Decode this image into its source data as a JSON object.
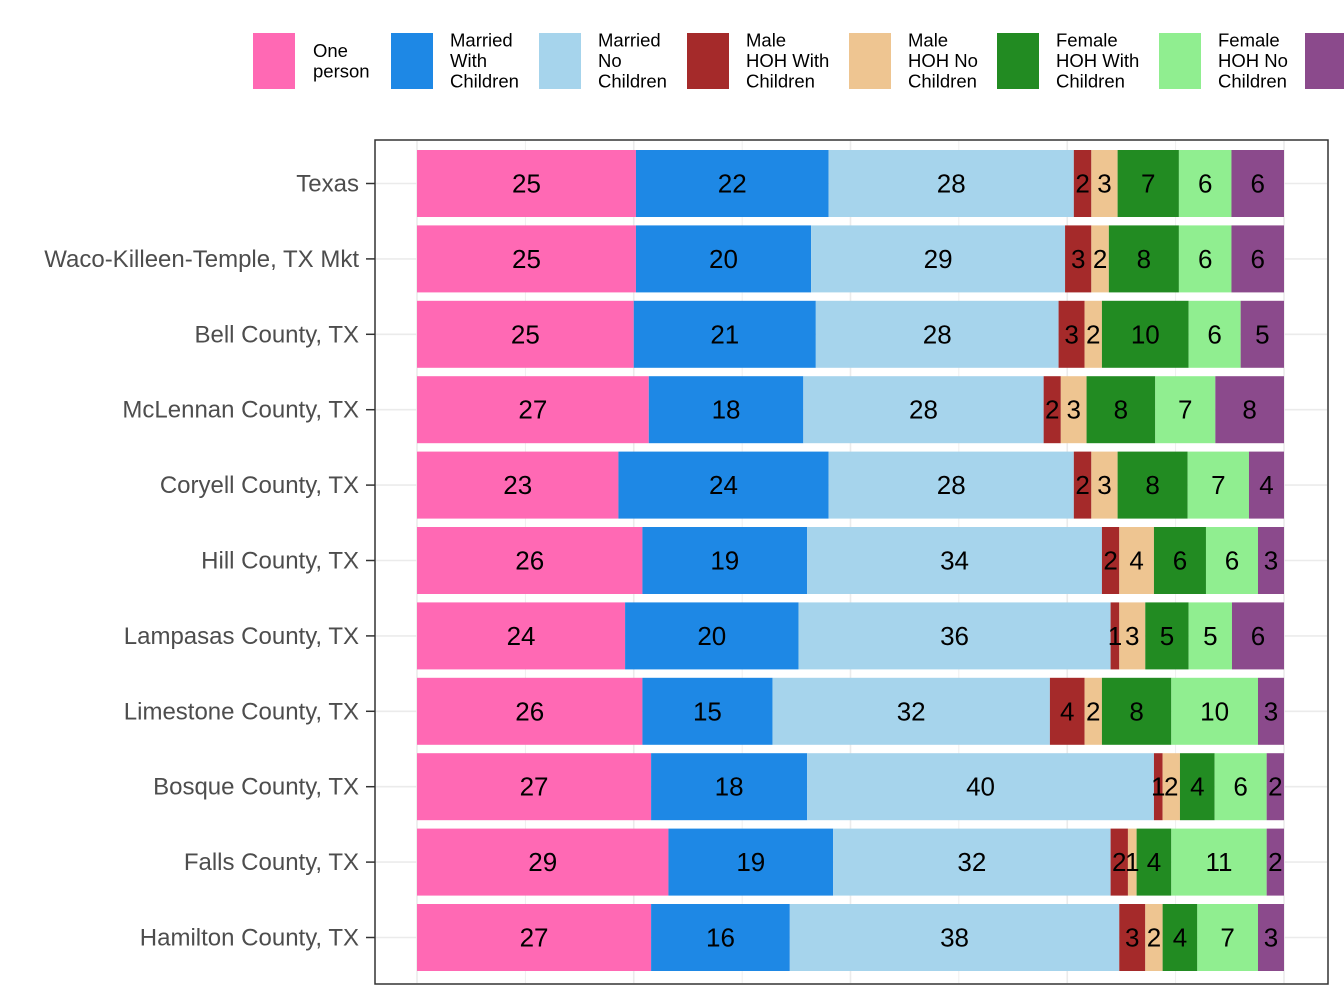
{
  "chart_data": {
    "type": "bar",
    "orientation": "horizontal",
    "stacked": true,
    "normalized_percent": true,
    "title": "",
    "xlabel": "",
    "ylabel": "",
    "legend_position": "top",
    "grid": true,
    "categories": [
      "Texas",
      "Waco-Killeen-Temple, TX Mkt",
      "Bell County, TX",
      "McLennan County, TX",
      "Coryell County, TX",
      "Hill County, TX",
      "Lampasas County, TX",
      "Limestone County, TX",
      "Bosque County, TX",
      "Falls County, TX",
      "Hamilton County, TX"
    ],
    "series": [
      {
        "name": "One person",
        "legend_lines": [
          "One",
          "person"
        ],
        "color": "#FF69B4",
        "values": [
          25,
          25,
          25,
          27,
          23,
          26,
          24,
          26,
          27,
          29,
          27
        ]
      },
      {
        "name": "Married With Children",
        "legend_lines": [
          "Married",
          "With",
          "Children"
        ],
        "color": "#1E88E5",
        "values": [
          22,
          20,
          21,
          18,
          24,
          19,
          20,
          15,
          18,
          19,
          16
        ]
      },
      {
        "name": "Married No Children",
        "legend_lines": [
          "Married",
          "No",
          "Children"
        ],
        "color": "#A6D4EC",
        "values": [
          28,
          29,
          28,
          28,
          28,
          34,
          36,
          32,
          40,
          32,
          38
        ]
      },
      {
        "name": "Male HOH With Children",
        "legend_lines": [
          "Male",
          "HOH With",
          "Children"
        ],
        "color": "#A52A2A",
        "values": [
          2,
          3,
          3,
          2,
          2,
          2,
          1,
          4,
          1,
          2,
          3
        ]
      },
      {
        "name": "Male HOH No Children",
        "legend_lines": [
          "Male",
          "HOH No",
          "Children"
        ],
        "color": "#EEC591",
        "values": [
          3,
          2,
          2,
          3,
          3,
          4,
          3,
          2,
          2,
          1,
          2
        ]
      },
      {
        "name": "Female HOH With Children",
        "legend_lines": [
          "Female",
          "HOH With",
          "Children"
        ],
        "color": "#228B22",
        "values": [
          7,
          8,
          10,
          8,
          8,
          6,
          5,
          8,
          4,
          4,
          4
        ]
      },
      {
        "name": "Female HOH No Children",
        "legend_lines": [
          "Female",
          "HOH No",
          "Children"
        ],
        "color": "#90EE90",
        "values": [
          6,
          6,
          6,
          7,
          7,
          6,
          5,
          10,
          6,
          11,
          7
        ]
      },
      {
        "name": "",
        "legend_lines": [],
        "color": "#8B4A8C",
        "values": [
          6,
          6,
          5,
          8,
          4,
          3,
          6,
          3,
          2,
          2,
          3
        ]
      }
    ]
  }
}
